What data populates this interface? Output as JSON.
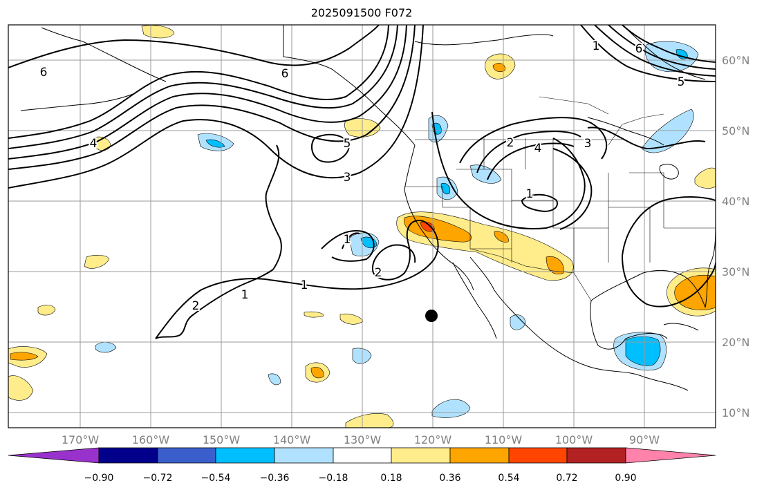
{
  "title": "2025091500 F072",
  "latitude_labels": [
    "60°N",
    "50°N",
    "40°N",
    "30°N",
    "20°N",
    "10°N"
  ],
  "longitude_labels": [
    "170°W",
    "160°W",
    "150°W",
    "140°W",
    "130°W",
    "120°W",
    "110°W",
    "100°W",
    "90°W"
  ],
  "contour_labels": [
    "6",
    "6",
    "5",
    "4",
    "3",
    "1",
    "2",
    "1",
    "1",
    "2",
    "3",
    "2",
    "1",
    "1",
    "6",
    "5",
    "4"
  ],
  "colorbar": {
    "tick_labels": [
      "−0.90",
      "−0.72",
      "−0.54",
      "−0.36",
      "−0.18",
      "0.18",
      "0.36",
      "0.54",
      "0.72",
      "0.90"
    ],
    "colors": [
      "#9932CC",
      "#00008B",
      "#3A5FCD",
      "#00BFFF",
      "#B0E2FF",
      "#FFFFFF",
      "#FFEC8B",
      "#FFA500",
      "#FF4500",
      "#B22222",
      "#FF82AB"
    ]
  },
  "marker": {
    "name": "location-dot",
    "color": "#000000"
  }
}
